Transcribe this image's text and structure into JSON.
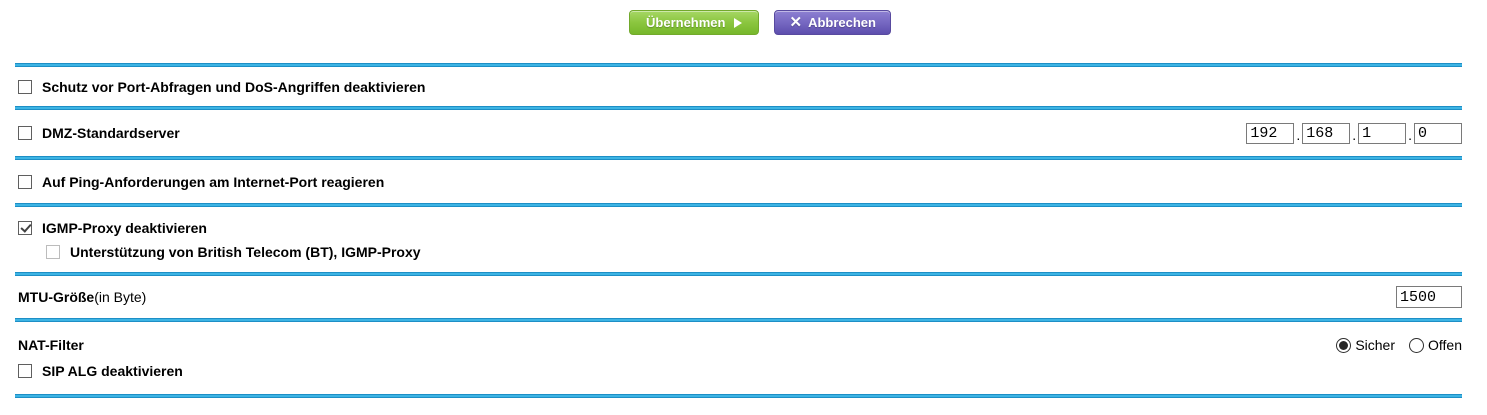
{
  "toolbar": {
    "apply_label": "Übernehmen",
    "cancel_label": "Abbrechen",
    "cancel_icon": "✕"
  },
  "colors": {
    "separator_blue": "#3db4e4",
    "apply_green": "#8bc63f",
    "cancel_purple": "#7668c2"
  },
  "form": {
    "port_dos": {
      "label": "Schutz vor Port-Abfragen und DoS-Angriffen deaktivieren",
      "checked": false
    },
    "dmz": {
      "label": "DMZ-Standardserver",
      "checked": false,
      "dot": ".",
      "ip_octets": [
        "192",
        "168",
        "1",
        "0"
      ]
    },
    "ping": {
      "label": "Auf Ping-Anforderungen am Internet-Port reagieren",
      "checked": false
    },
    "igmp": {
      "label": "IGMP-Proxy deaktivieren",
      "checked": true
    },
    "igmp_bt": {
      "label": "Unterstützung von British Telecom (BT), IGMP-Proxy",
      "checked": false
    },
    "mtu": {
      "label": "MTU-Größe",
      "note": "(in Byte)",
      "value": "1500"
    },
    "nat_filter": {
      "label": "NAT-Filter",
      "options": [
        {
          "label": "Sicher",
          "selected": true
        },
        {
          "label": "Offen",
          "selected": false
        }
      ]
    },
    "sip_alg": {
      "label": "SIP ALG deaktivieren",
      "checked": false
    }
  }
}
